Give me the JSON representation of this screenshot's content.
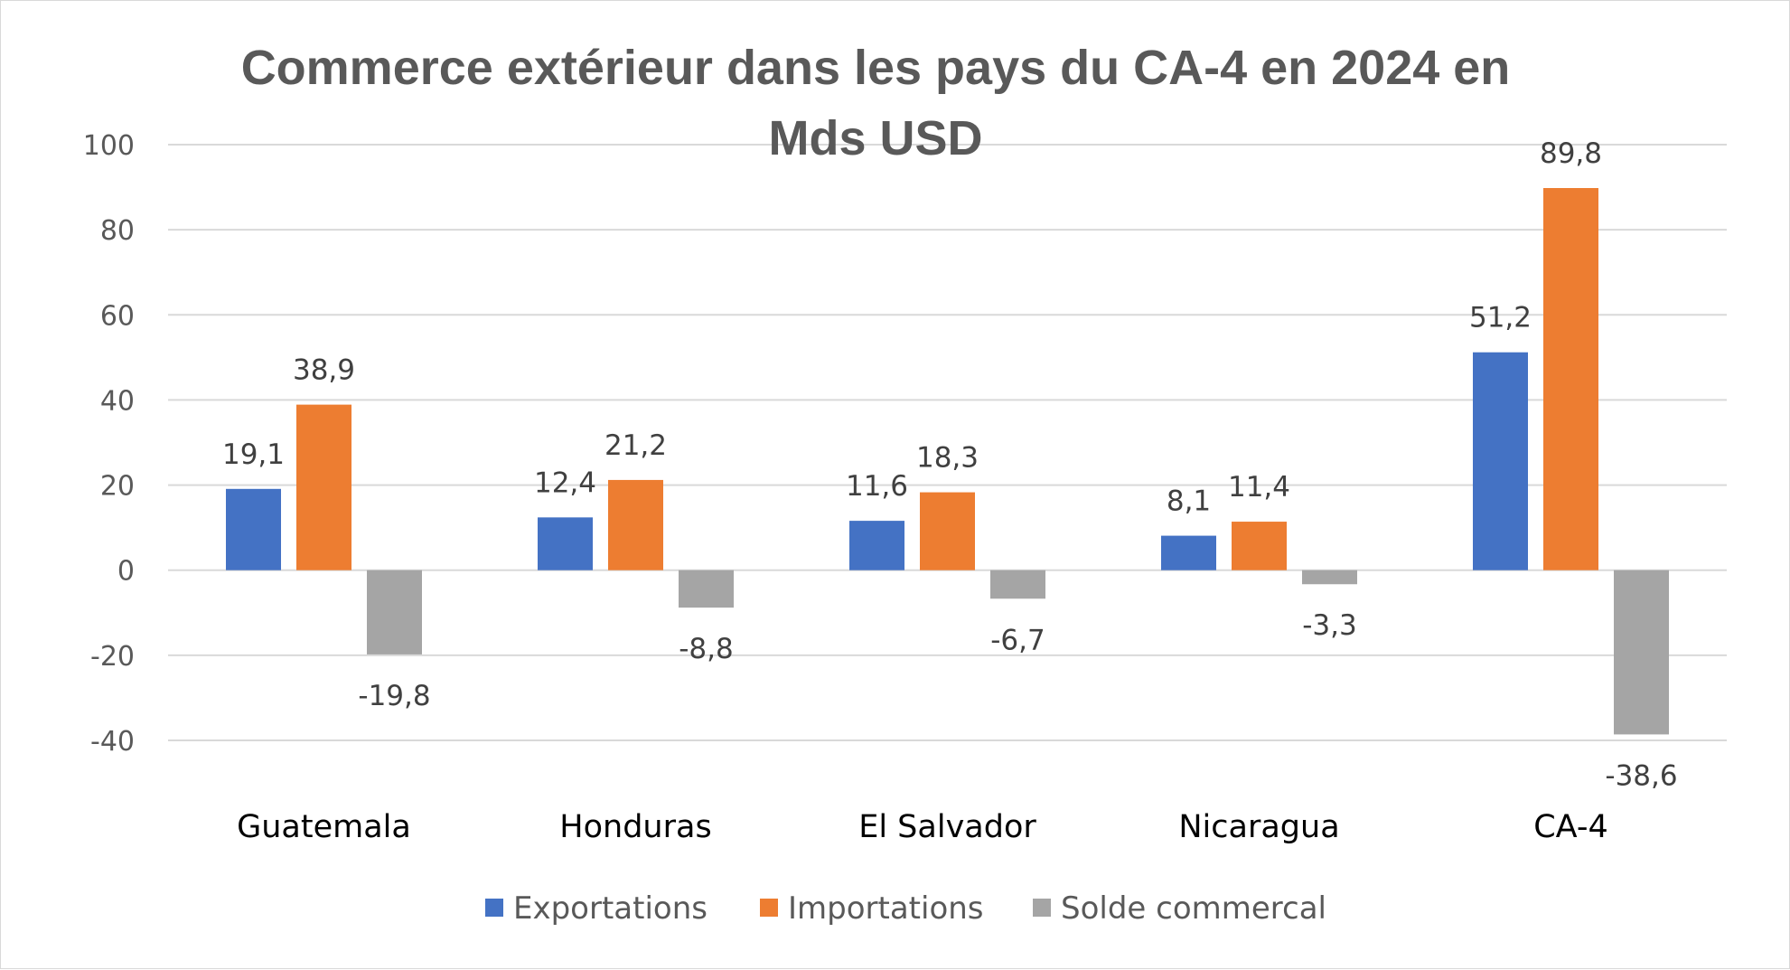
{
  "chart_data": {
    "type": "bar",
    "title_lines": [
      "Commerce extérieur dans les pays du CA-4 en 2024 en",
      "Mds USD"
    ],
    "categories": [
      "Guatemala",
      "Honduras",
      "El Salvador",
      "Nicaragua",
      "CA-4"
    ],
    "series": [
      {
        "name": "Exportations",
        "color": "#4472C4",
        "values": [
          19.1,
          12.4,
          11.6,
          8.1,
          51.2
        ],
        "labels": [
          "19,1",
          "12,4",
          "11,6",
          "8,1",
          "51,2"
        ]
      },
      {
        "name": "Importations",
        "color": "#ED7D31",
        "values": [
          38.9,
          21.2,
          18.3,
          11.4,
          89.8
        ],
        "labels": [
          "38,9",
          "21,2",
          "18,3",
          "11,4",
          "89,8"
        ]
      },
      {
        "name": "Solde commercal",
        "color": "#A5A5A5",
        "values": [
          -19.8,
          -8.8,
          -6.7,
          -3.3,
          -38.6
        ],
        "labels": [
          "-19,8",
          "-8,8",
          "-6,7",
          "-3,3",
          "-38,6"
        ]
      }
    ],
    "ylim": [
      -40,
      100
    ],
    "yticks": [
      100,
      80,
      60,
      40,
      20,
      0,
      -20,
      -40
    ],
    "grid": true,
    "legend_position": "bottom"
  }
}
